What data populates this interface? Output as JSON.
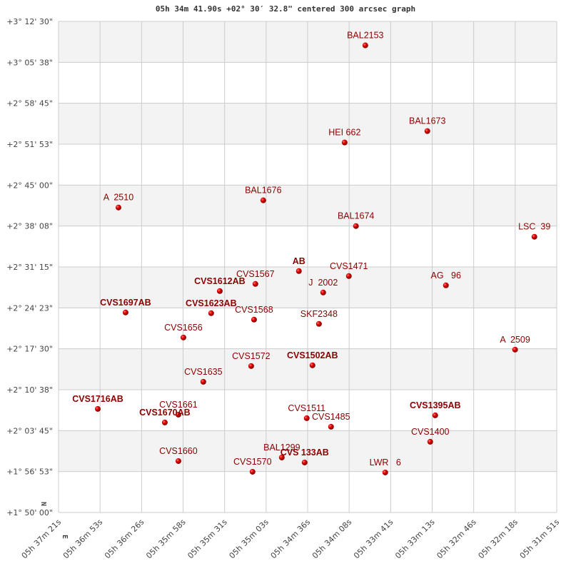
{
  "chart_data": {
    "type": "scatter",
    "title": "05h 34m 41.90s +02° 30′ 32.8\" centered 300 arcsec graph",
    "xlabel": "",
    "ylabel": "",
    "x_direction_label": "E",
    "y_direction_label": "N",
    "xlim": [
      "05:37:21",
      "05:31:51"
    ],
    "ylim": [
      "+01:50:00",
      "+03:12:30"
    ],
    "grid": true,
    "band_color": "#f3f3f3",
    "grid_color": "#cccccc",
    "point_color": "#dd0000",
    "label_color": "#8b0000",
    "x_tick_labels": [
      "05h 37m 21s",
      "05h 36m 53s",
      "05h 36m 26s",
      "05h 35m 58s",
      "05h 35m 31s",
      "05h 35m 03s",
      "05h 34m 36s",
      "05h 34m 08s",
      "05h 33m 41s",
      "05h 33m 13s",
      "05h 32m 46s",
      "05h 32m 18s",
      "05h 31m 51s"
    ],
    "y_tick_labels": [
      "+1° 50' 00\"",
      "+1° 56' 53\"",
      "+2° 03' 45\"",
      "+2° 10' 38\"",
      "+2° 17' 30\"",
      "+2° 24' 23\"",
      "+2° 31' 15\"",
      "+2° 38' 08\"",
      "+2° 45' 00\"",
      "+2° 51' 53\"",
      "+2° 58' 45\"",
      "+3° 05' 38\"",
      "+3° 12' 30\""
    ],
    "points": [
      {
        "label": "BAL2153",
        "ra": "05:33:57.8",
        "dec": "+03:08:28.8",
        "bold": false
      },
      {
        "label": "BAL1673",
        "ra": "05:33:16.7",
        "dec": "+02:54:04.8",
        "bold": false
      },
      {
        "label": "HEI 662",
        "ra": "05:34:11.5",
        "dec": "+02:52:09.6",
        "bold": false
      },
      {
        "label": "A  2510",
        "ra": "05:36:41.3",
        "dec": "+02:41:14.4",
        "bold": false
      },
      {
        "label": "BAL1676",
        "ra": "05:35:05.4",
        "dec": "+02:42:26.4",
        "bold": false
      },
      {
        "label": "BAL1674",
        "ra": "05:34:04.0",
        "dec": "+02:38:07.2",
        "bold": false
      },
      {
        "label": "LSC  39",
        "ra": "05:32:05.8",
        "dec": "+02:36:19.2",
        "bold": false
      },
      {
        "label": "AB",
        "ra": "05:34:41.8",
        "dec": "+02:30:33.6",
        "bold": true
      },
      {
        "label": "CVS1471",
        "ra": "05:34:08.7",
        "dec": "+02:29:43.2",
        "bold": false
      },
      {
        "label": "CVS1567",
        "ra": "05:35:10.6",
        "dec": "+02:28:24.0",
        "bold": false
      },
      {
        "label": "CVS1612AB",
        "ra": "05:35:34.2",
        "dec": "+02:27:12.0",
        "bold": true
      },
      {
        "label": "J  2002",
        "ra": "05:34:25.7",
        "dec": "+02:26:57.6",
        "bold": false
      },
      {
        "label": "AG   96",
        "ra": "05:33:04.4",
        "dec": "+02:28:09.6",
        "bold": false
      },
      {
        "label": "CVS1697AB",
        "ra": "05:36:36.6",
        "dec": "+02:23:36.0",
        "bold": true
      },
      {
        "label": "CVS1623AB",
        "ra": "05:35:39.9",
        "dec": "+02:23:28.8",
        "bold": true
      },
      {
        "label": "CVS1568",
        "ra": "05:35:11.5",
        "dec": "+02:22:24.0",
        "bold": false
      },
      {
        "label": "SKF2348",
        "ra": "05:34:28.5",
        "dec": "+02:21:40.8",
        "bold": false
      },
      {
        "label": "CVS1656",
        "ra": "05:35:58.3",
        "dec": "+02:19:24.0",
        "bold": false
      },
      {
        "label": "A  2509",
        "ra": "05:32:18.6",
        "dec": "+02:17:21.6",
        "bold": false
      },
      {
        "label": "CVS1572",
        "ra": "05:35:13.4",
        "dec": "+02:14:36.0",
        "bold": false
      },
      {
        "label": "CVS1502AB",
        "ra": "05:34:32.8",
        "dec": "+02:14:43.2",
        "bold": true
      },
      {
        "label": "CVS1635",
        "ra": "05:35:45.1",
        "dec": "+02:11:57.6",
        "bold": false
      },
      {
        "label": "CVS1716AB",
        "ra": "05:36:55.0",
        "dec": "+02:07:24.0",
        "bold": true
      },
      {
        "label": "CVS1661",
        "ra": "05:36:01.6",
        "dec": "+02:06:26.4",
        "bold": false
      },
      {
        "label": "CVS1670AB",
        "ra": "05:36:10.6",
        "dec": "+02:05:07.2",
        "bold": true
      },
      {
        "label": "CVS1511",
        "ra": "05:34:36.6",
        "dec": "+02:05:50.4",
        "bold": false
      },
      {
        "label": "CVS1485",
        "ra": "05:34:20.5",
        "dec": "+02:04:24.0",
        "bold": false
      },
      {
        "label": "CVS1395AB",
        "ra": "05:33:11.5",
        "dec": "+02:06:19.2",
        "bold": true
      },
      {
        "label": "CVS1400",
        "ra": "05:33:14.8",
        "dec": "+02:01:52.8",
        "bold": false
      },
      {
        "label": "CVS1660",
        "ra": "05:36:01.6",
        "dec": "+01:58:38.4",
        "bold": false
      },
      {
        "label": "BAL1299",
        "ra": "05:34:53.1",
        "dec": "+01:59:14.4",
        "bold": false
      },
      {
        "label": "CVS 133AB",
        "ra": "05:34:38.0",
        "dec": "+01:58:24.0",
        "bold": true
      },
      {
        "label": "CVS1570",
        "ra": "05:35:12.5",
        "dec": "+01:56:50.4",
        "bold": false
      },
      {
        "label": "LWR   6",
        "ra": "05:33:44.6",
        "dec": "+01:56:43.2",
        "bold": false
      }
    ]
  }
}
